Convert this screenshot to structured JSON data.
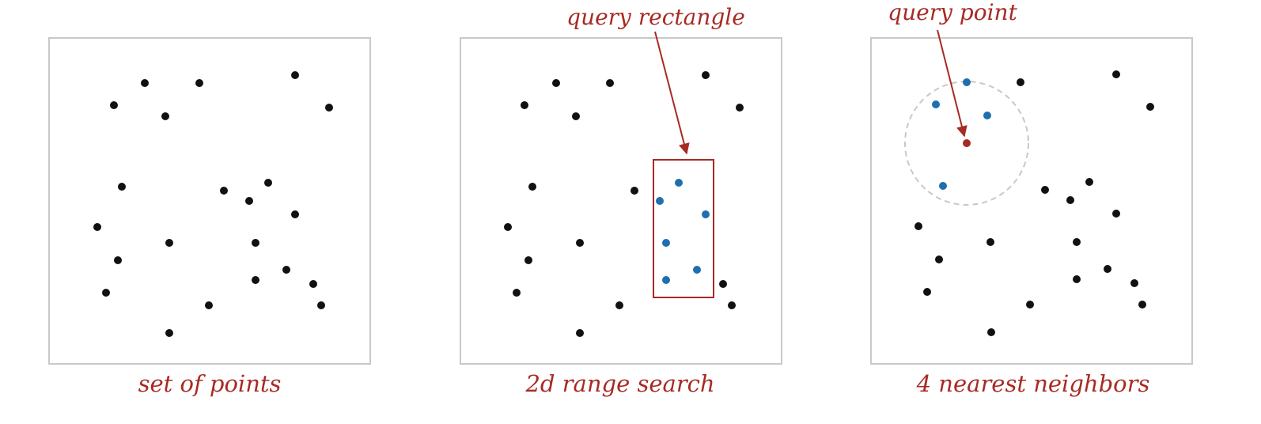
{
  "colors": {
    "point": "#111111",
    "highlight": "#1f6fae",
    "query": "#a82a24",
    "frame": "#c9c9c9",
    "circle": "#c8c8c8"
  },
  "panels": [
    {
      "caption": "set of points",
      "points": [
        [
          183,
          105
        ],
        [
          252,
          105
        ],
        [
          373,
          95
        ],
        [
          144,
          133
        ],
        [
          209,
          147
        ],
        [
          416,
          136
        ],
        [
          154,
          236
        ],
        [
          283,
          241
        ],
        [
          339,
          231
        ],
        [
          315,
          254
        ],
        [
          373,
          271
        ],
        [
          123,
          287
        ],
        [
          214,
          307
        ],
        [
          323,
          307
        ],
        [
          149,
          329
        ],
        [
          323,
          354
        ],
        [
          362,
          341
        ],
        [
          396,
          359
        ],
        [
          134,
          370
        ],
        [
          264,
          386
        ],
        [
          406,
          386
        ],
        [
          214,
          421
        ]
      ],
      "highlighted": []
    },
    {
      "caption": "2d range search",
      "callout": "query rectangle",
      "points": [
        [
          703,
          105
        ],
        [
          771,
          105
        ],
        [
          892,
          95
        ],
        [
          663,
          133
        ],
        [
          728,
          147
        ],
        [
          935,
          136
        ],
        [
          673,
          236
        ],
        [
          802,
          241
        ],
        [
          642,
          287
        ],
        [
          733,
          307
        ],
        [
          668,
          329
        ],
        [
          653,
          370
        ],
        [
          783,
          386
        ],
        [
          733,
          421
        ],
        [
          914,
          359
        ],
        [
          925,
          386
        ]
      ],
      "highlighted": [
        [
          858,
          231
        ],
        [
          834,
          254
        ],
        [
          892,
          271
        ],
        [
          842,
          307
        ],
        [
          842,
          354
        ],
        [
          881,
          341
        ]
      ]
    },
    {
      "caption": "4 nearest neighbors",
      "callout": "query point",
      "points": [
        [
          1290,
          104
        ],
        [
          1411,
          94
        ],
        [
          1454,
          135
        ],
        [
          1321,
          240
        ],
        [
          1377,
          230
        ],
        [
          1353,
          253
        ],
        [
          1411,
          270
        ],
        [
          1161,
          286
        ],
        [
          1252,
          306
        ],
        [
          1361,
          306
        ],
        [
          1187,
          328
        ],
        [
          1361,
          353
        ],
        [
          1400,
          340
        ],
        [
          1434,
          358
        ],
        [
          1172,
          369
        ],
        [
          1302,
          385
        ],
        [
          1444,
          385
        ],
        [
          1253,
          420
        ]
      ],
      "highlighted": [
        [
          1222,
          104
        ],
        [
          1183,
          132
        ],
        [
          1248,
          146
        ],
        [
          1192,
          235
        ]
      ],
      "query_point": [
        1222,
        181
      ]
    }
  ]
}
